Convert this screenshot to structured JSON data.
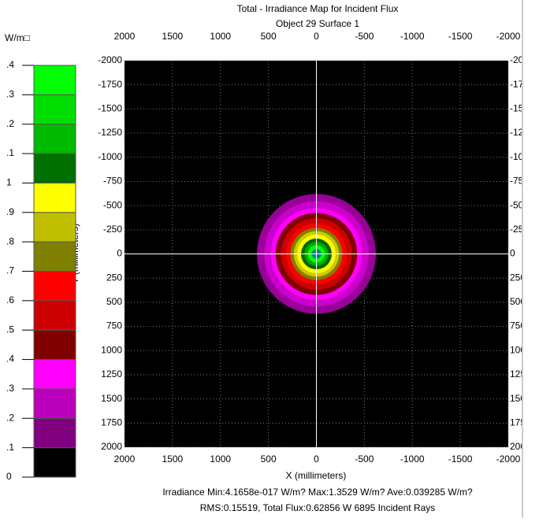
{
  "chart_data": {
    "type": "irradiance-map",
    "title": "Total - Irradiance Map for Incident Flux",
    "subtitle": "Object 29 Surface 1",
    "unit_label": "W/m□",
    "xlabel": "X (millimeters)",
    "ylabel": "Y (millimeters)",
    "footer": [
      "Irradiance Min:4.1658e-017 W/m? Max:1.3529 W/m? Ave:0.039285 W/m?",
      "RMS:0.15519, Total Flux:0.62856 W 6895 Incident Rays"
    ],
    "xlim": [
      2000,
      -2000
    ],
    "ylim": [
      -2000,
      2000
    ],
    "xticks": [
      2000,
      1500,
      1000,
      500,
      0,
      -500,
      -1000,
      -1500,
      -2000
    ],
    "yticks": [
      -2000,
      -1750,
      -1500,
      -1250,
      -1000,
      -750,
      -500,
      -250,
      0,
      250,
      500,
      750,
      1000,
      1250,
      1500,
      1750,
      2000
    ],
    "grid": true,
    "background": "#000000",
    "rings": [
      {
        "radius": 620,
        "color": "#990099"
      },
      {
        "radius": 545,
        "color": "#cc00cc"
      },
      {
        "radius": 475,
        "color": "#ff00ff"
      },
      {
        "radius": 425,
        "color": "#800000"
      },
      {
        "radius": 370,
        "color": "#cc0000"
      },
      {
        "radius": 315,
        "color": "#ff0000"
      },
      {
        "radius": 270,
        "color": "#808000"
      },
      {
        "radius": 235,
        "color": "#cccc00"
      },
      {
        "radius": 200,
        "color": "#ffff00"
      },
      {
        "radius": 160,
        "color": "#006600"
      },
      {
        "radius": 125,
        "color": "#00aa00"
      },
      {
        "radius": 90,
        "color": "#00ff00"
      },
      {
        "radius": 50,
        "color": "#008080"
      }
    ],
    "colorbar": {
      "ticks": [
        0,
        {
          "value": 0.1,
          "label": ".1"
        },
        {
          "value": 0.2,
          "label": ".2"
        },
        {
          "value": 0.3,
          "label": ".3"
        },
        {
          "value": 0.4,
          "label": ".4"
        },
        {
          "value": 0.5,
          "label": ".5"
        },
        {
          "value": 0.6,
          "label": ".6"
        },
        {
          "value": 0.7,
          "label": ".7"
        },
        {
          "value": 0.8,
          "label": ".8"
        },
        {
          "value": 0.9,
          "label": ".9"
        },
        1,
        {
          "value": 1.1,
          "label": ".1"
        },
        {
          "value": 1.2,
          "label": ".2"
        },
        {
          "value": 1.3,
          "label": ".3"
        },
        {
          "value": 1.4,
          "label": ".4"
        }
      ],
      "colors": [
        "#000000",
        "#800080",
        "#bb00bb",
        "#ff00ff",
        "#800000",
        "#cc0000",
        "#ff0000",
        "#808000",
        "#c0c000",
        "#ffff00",
        "#007000",
        "#00bb00",
        "#00dd00",
        "#00ff00",
        "#008080"
      ]
    }
  }
}
